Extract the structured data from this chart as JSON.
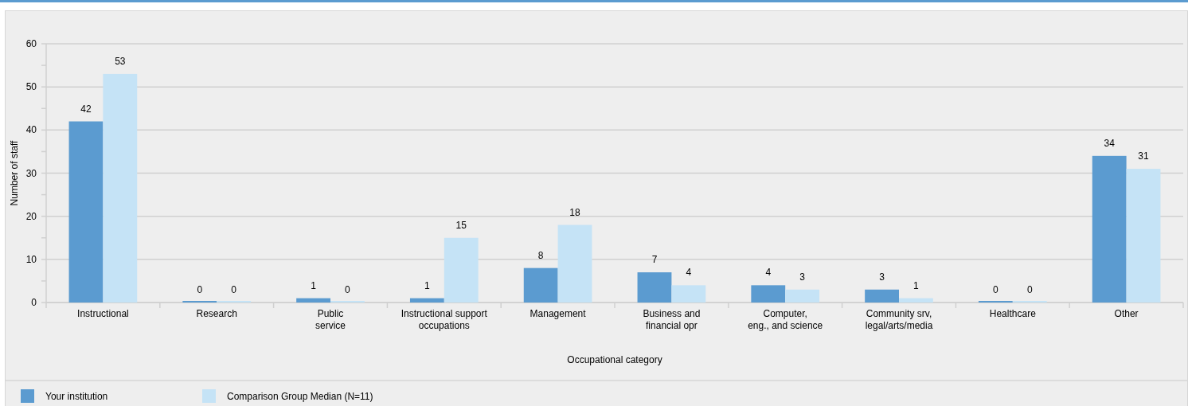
{
  "chart_data": {
    "type": "bar",
    "xlabel": "Occupational category",
    "ylabel": "Number of staff",
    "categories": [
      "Instructional",
      "Research",
      "Public\nservice",
      "Instructional support\noccupations",
      "Management",
      "Business and\nfinancial opr",
      "Computer,\neng., and science",
      "Community srv,\nlegal/arts/media",
      "Healthcare",
      "Other"
    ],
    "series": [
      {
        "name": "Your institution",
        "color": "#5b9bd0",
        "values": [
          42,
          0,
          1,
          1,
          8,
          7,
          4,
          3,
          0,
          34
        ]
      },
      {
        "name": "Comparison Group Median (N=11)",
        "color": "#c5e3f6",
        "values": [
          53,
          0,
          0,
          15,
          18,
          4,
          3,
          1,
          0,
          31
        ]
      }
    ],
    "ylim": [
      0,
      60
    ],
    "yticks": [
      0,
      {
        "value": 5,
        "label": null
      },
      10,
      {
        "value": 15,
        "label": null
      },
      20,
      {
        "value": 25,
        "label": null
      },
      30,
      {
        "value": 35,
        "label": null
      },
      40,
      {
        "value": 45,
        "label": null
      },
      50,
      {
        "value": 55,
        "label": null
      },
      60
    ],
    "grid": "y",
    "legend": "bottom left",
    "data_labels": true
  }
}
